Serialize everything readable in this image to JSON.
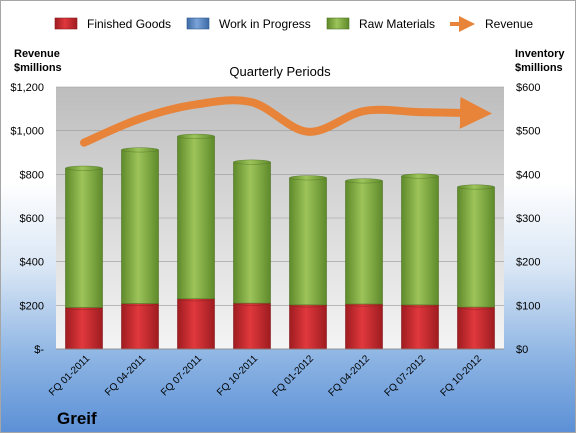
{
  "chart_data": {
    "type": "bar",
    "subtitle": "Quarterly Periods",
    "company": "Greif",
    "left_axis_title": [
      "Revenue",
      "$millions"
    ],
    "right_axis_title": [
      "Inventory",
      "$millions"
    ],
    "left_ylim": [
      0,
      1200
    ],
    "right_ylim": [
      0,
      600
    ],
    "left_ticks": [
      "$-",
      "$200",
      "$400",
      "$600",
      "$800",
      "$1,000",
      "$1,200"
    ],
    "right_ticks": [
      "$0",
      "$100",
      "$200",
      "$300",
      "$400",
      "$500",
      "$600"
    ],
    "categories": [
      "FQ 01-2011",
      "FQ 04-2011",
      "FQ 07-2011",
      "FQ 10-2011",
      "FQ 01-2012",
      "FQ 04-2012",
      "FQ 07-2012",
      "FQ 10-2012"
    ],
    "stacked": true,
    "series": [
      {
        "name": "Finished Goods",
        "axis": "right",
        "color": "#c0262b",
        "values": [
          95,
          104,
          115,
          105,
          101,
          103,
          101,
          96
        ]
      },
      {
        "name": "Work in Progress",
        "axis": "right",
        "color": "#4f81bd",
        "values": [
          0,
          0,
          0,
          0,
          0,
          0,
          0,
          0
        ]
      },
      {
        "name": "Raw Materials",
        "axis": "right",
        "color": "#77a23a",
        "values": [
          319,
          352,
          372,
          323,
          291,
          282,
          295,
          275
        ]
      },
      {
        "name": "Revenue",
        "axis": "left",
        "type": "line",
        "color": "#e8843a",
        "values": [
          945,
          1055,
          1120,
          1130,
          995,
          1090,
          1085,
          1080
        ]
      }
    ],
    "grid": true,
    "legend": "top"
  }
}
